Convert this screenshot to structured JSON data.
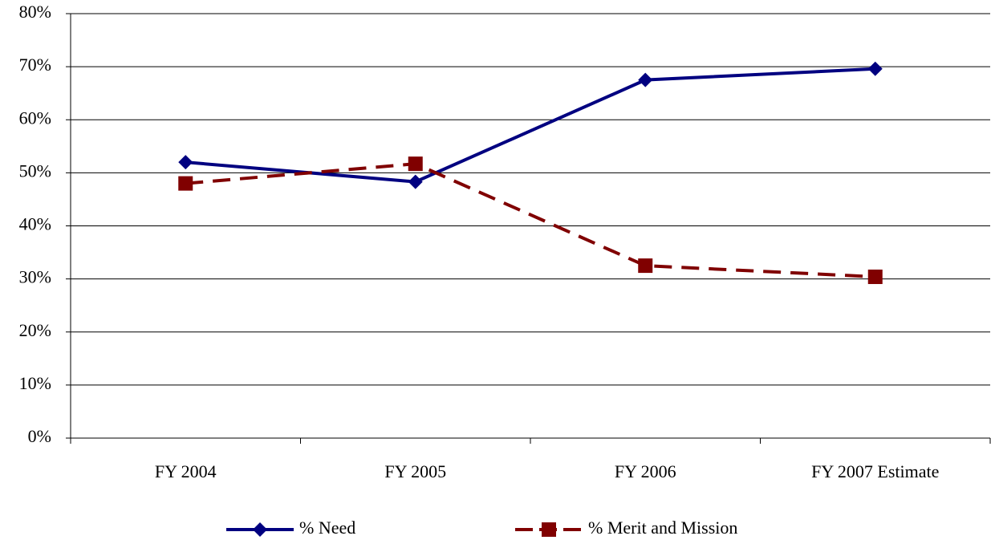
{
  "chart_data": {
    "type": "line",
    "categories": [
      "FY 2004",
      "FY 2005",
      "FY 2006",
      "FY 2007 Estimate"
    ],
    "series": [
      {
        "name": "% Need",
        "color": "#000080",
        "line_style": "solid",
        "marker": "diamond",
        "values": [
          52,
          48.3,
          67.5,
          69.6
        ]
      },
      {
        "name": "% Merit and Mission",
        "color": "#800000",
        "line_style": "dashed",
        "marker": "square",
        "values": [
          48,
          51.7,
          32.5,
          30.4
        ]
      }
    ],
    "ylim": [
      0,
      80
    ],
    "yticks": [
      {
        "value": 0,
        "label": "0%"
      },
      {
        "value": 10,
        "label": "10%"
      },
      {
        "value": 20,
        "label": "20%"
      },
      {
        "value": 30,
        "label": "30%"
      },
      {
        "value": 40,
        "label": "40%"
      },
      {
        "value": 50,
        "label": "50%"
      },
      {
        "value": 60,
        "label": "60%"
      },
      {
        "value": 70,
        "label": "70%"
      },
      {
        "value": 80,
        "label": "80%"
      }
    ],
    "grid": true,
    "legend": "bottom"
  }
}
